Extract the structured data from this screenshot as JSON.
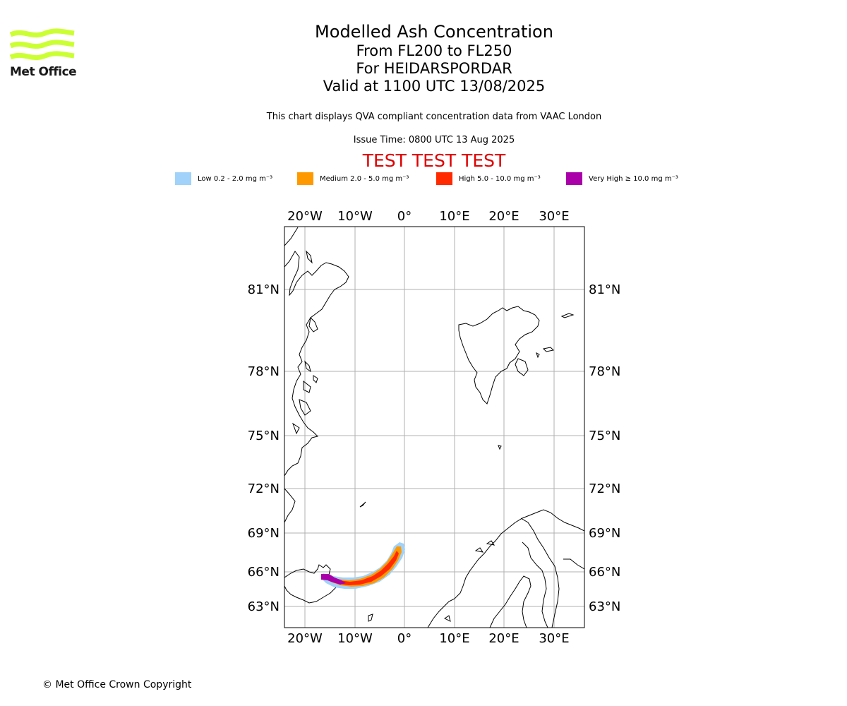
{
  "logo": {
    "text": "Met Office",
    "color": "#ccff33"
  },
  "titles": {
    "main": "Modelled Ash Concentration",
    "levels": "From FL200 to FL250",
    "volcano": "For HEIDARSPORDAR",
    "valid": "Valid at 1100 UTC 13/08/2025"
  },
  "subtitle": "This chart displays QVA compliant concentration data from VAAC London",
  "issue_time": "Issue Time: 0800 UTC 13 Aug 2025",
  "test_banner": "TEST TEST TEST",
  "legend": [
    {
      "label": "Low 0.2 - 2.0 mg m⁻³",
      "color": "#a0d2fa"
    },
    {
      "label": "Medium 2.0 - 5.0 mg m⁻³",
      "color": "#ff9900"
    },
    {
      "label": "High 5.0 - 10.0 mg m⁻³",
      "color": "#ff2a00"
    },
    {
      "label": "Very High ≥ 10.0 mg m⁻³",
      "color": "#aa00aa"
    }
  ],
  "map": {
    "lon_labels": [
      "20°W",
      "10°W",
      "0°",
      "10°E",
      "20°E",
      "30°E"
    ],
    "lat_labels": [
      "81°N",
      "78°N",
      "75°N",
      "72°N",
      "69°N",
      "66°N",
      "63°N"
    ]
  },
  "copyright": "© Met Office Crown Copyright"
}
